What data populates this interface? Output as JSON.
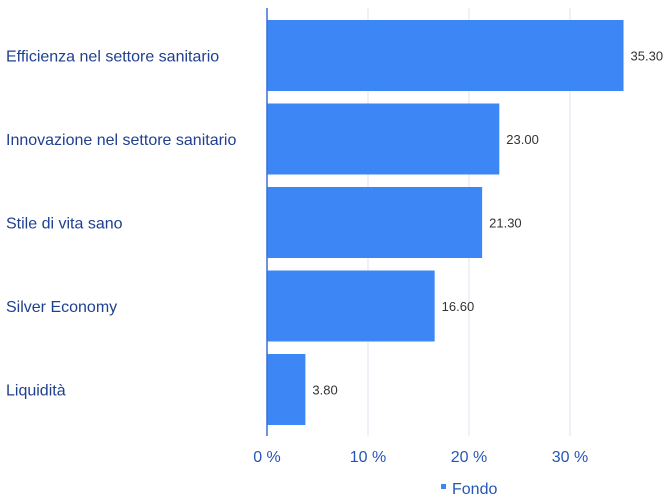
{
  "chart_data": {
    "type": "bar",
    "orientation": "horizontal",
    "categories": [
      "Efficienza nel settore sanitario",
      "Innovazione nel settore sanitario",
      "Stile di vita sano",
      "Silver Economy",
      "Liquidità"
    ],
    "series": [
      {
        "name": "Fondo",
        "values": [
          35.3,
          23.0,
          21.3,
          16.6,
          3.8
        ],
        "data_labels": [
          "35.30",
          "23.00",
          "21.30",
          "16.60",
          "3.80"
        ]
      }
    ],
    "xlim": [
      0,
      40
    ],
    "xticks": [
      0,
      10,
      20,
      30
    ],
    "xtick_labels": [
      "0 %",
      "10 %",
      "20 %",
      "30 %"
    ],
    "grid": "vertical",
    "legend_position": "bottom-center",
    "colors": {
      "bar": "#3d86f5",
      "axis": "#3c6fd6",
      "grid": "#dde6f2",
      "category_text": "#1f3f8f",
      "tick_text": "#2356b8",
      "data_label_text": "#333333"
    }
  }
}
